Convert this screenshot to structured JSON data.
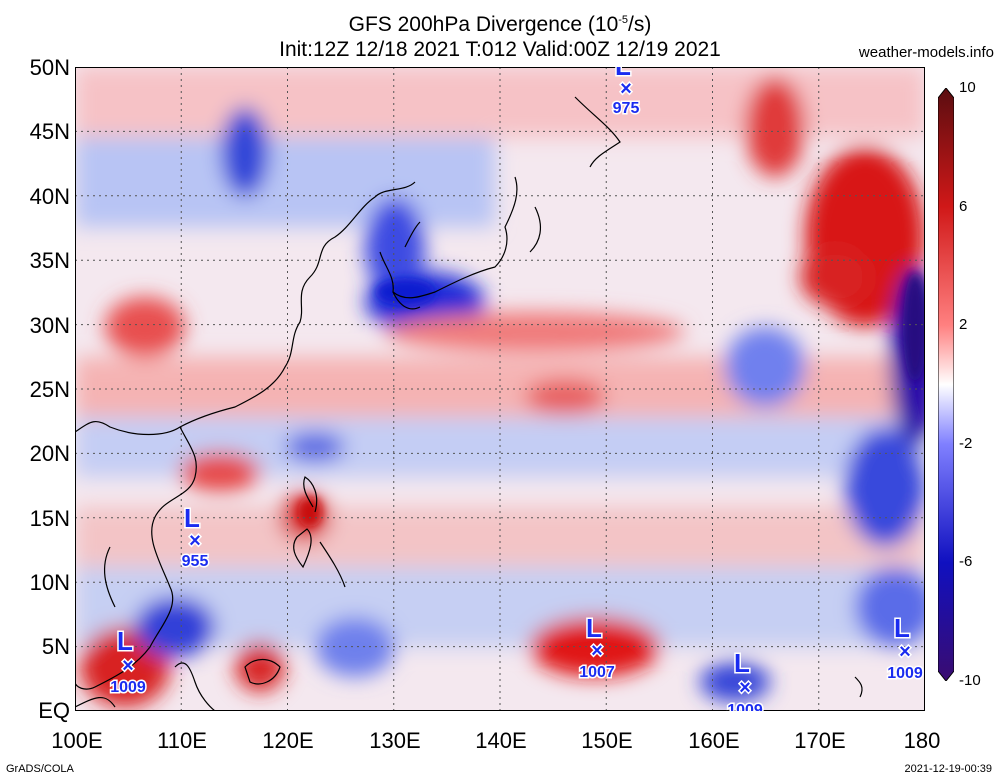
{
  "header": {
    "title_line1": "GFS 200hPa Divergence (10",
    "title_sup": "-5",
    "title_end": "/s)",
    "title_line2": "Init:12Z 12/18 2021 T:012 Valid:00Z 12/19 2021",
    "site": "weather-models.info"
  },
  "axes": {
    "y_labels": [
      "50N",
      "45N",
      "40N",
      "35N",
      "30N",
      "25N",
      "20N",
      "15N",
      "10N",
      "5N",
      "EQ"
    ],
    "x_labels": [
      "100E",
      "110E",
      "120E",
      "130E",
      "140E",
      "150E",
      "160E",
      "170E",
      "180"
    ]
  },
  "colorbar": {
    "labels": [
      "10",
      "6",
      "2",
      "-2",
      "-6",
      "-10"
    ],
    "colors": [
      "#5a0d10",
      "#d01818",
      "#ff8080",
      "#ffffff",
      "#8080ff",
      "#1010c0",
      "#3a0c70"
    ]
  },
  "lows": [
    {
      "letter": "L",
      "value": "975"
    },
    {
      "letter": "L",
      "value": "955"
    },
    {
      "letter": "L",
      "value": "1009"
    },
    {
      "letter": "L",
      "value": "1007"
    },
    {
      "letter": "L",
      "value": "1009"
    },
    {
      "letter": "L",
      "value": "1009"
    }
  ],
  "footer": {
    "left": "GrADS/COLA",
    "right": "2021-12-19-00:39"
  }
}
